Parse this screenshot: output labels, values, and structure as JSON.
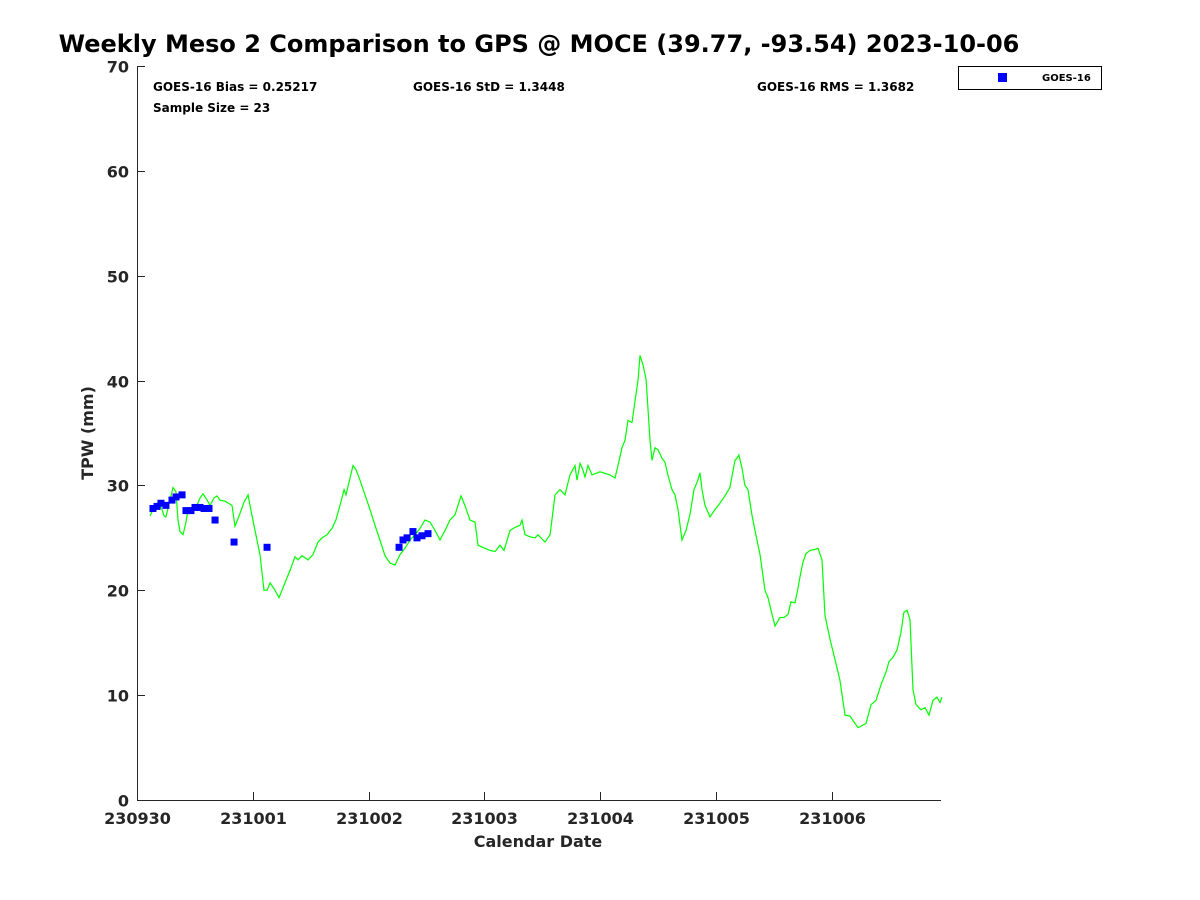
{
  "chart_data": {
    "type": "line",
    "title": "Weekly Meso 2 Comparison to GPS @ MOCE (39.77, -93.54) 2023-10-06",
    "xlabel": "Calendar Date",
    "ylabel": "TPW (mm)",
    "xlim": [
      0,
      6.95
    ],
    "ylim": [
      0,
      70
    ],
    "x_unit": "days since 230930",
    "xticks": [
      0,
      1,
      2,
      3,
      4,
      5,
      6
    ],
    "xtick_labels": [
      "230930",
      "231001",
      "231002",
      "231003",
      "231004",
      "231005",
      "231006"
    ],
    "yticks": [
      0,
      10,
      20,
      30,
      40,
      50,
      60,
      70
    ],
    "ytick_labels": [
      "0",
      "10",
      "20",
      "30",
      "40",
      "50",
      "60",
      "70"
    ],
    "grid": false,
    "legend_position": "outside top-right",
    "annotations": {
      "bias": "GOES-16 Bias = 0.25217",
      "std": "GOES-16 StD = 1.3448",
      "rms": "GOES-16 RMS = 1.3682",
      "sample": "Sample Size = 23"
    },
    "series": [
      {
        "name": "GPS",
        "color": "#00ff00",
        "style": "line",
        "in_legend": false,
        "points": [
          [
            0.112,
            27.1
          ],
          [
            0.13,
            27.5
          ],
          [
            0.155,
            28.0
          ],
          [
            0.181,
            28.4
          ],
          [
            0.216,
            27.7
          ],
          [
            0.233,
            27.1
          ],
          [
            0.25,
            27.0
          ],
          [
            0.285,
            28.6
          ],
          [
            0.311,
            29.8
          ],
          [
            0.337,
            29.4
          ],
          [
            0.354,
            26.7
          ],
          [
            0.371,
            25.6
          ],
          [
            0.397,
            25.3
          ],
          [
            0.423,
            26.5
          ],
          [
            0.44,
            27.7
          ],
          [
            0.475,
            27.8
          ],
          [
            0.51,
            27.9
          ],
          [
            0.544,
            28.8
          ],
          [
            0.57,
            29.2
          ],
          [
            0.605,
            28.6
          ],
          [
            0.63,
            28.1
          ],
          [
            0.665,
            28.8
          ],
          [
            0.691,
            29.0
          ],
          [
            0.717,
            28.6
          ],
          [
            0.76,
            28.5
          ],
          [
            0.82,
            28.1
          ],
          [
            0.846,
            26.1
          ],
          [
            0.889,
            27.3
          ],
          [
            0.924,
            28.4
          ],
          [
            0.959,
            29.1
          ],
          [
            0.976,
            28.1
          ],
          [
            1.019,
            25.7
          ],
          [
            1.062,
            23.4
          ],
          [
            1.097,
            20.0
          ],
          [
            1.123,
            20.0
          ],
          [
            1.149,
            20.7
          ],
          [
            1.192,
            20.0
          ],
          [
            1.226,
            19.3
          ],
          [
            1.278,
            20.7
          ],
          [
            1.321,
            21.9
          ],
          [
            1.364,
            23.2
          ],
          [
            1.39,
            22.9
          ],
          [
            1.425,
            23.3
          ],
          [
            1.477,
            22.9
          ],
          [
            1.52,
            23.4
          ],
          [
            1.563,
            24.6
          ],
          [
            1.598,
            25.0
          ],
          [
            1.641,
            25.3
          ],
          [
            1.684,
            25.9
          ],
          [
            1.718,
            26.7
          ],
          [
            1.753,
            28.1
          ],
          [
            1.788,
            29.6
          ],
          [
            1.805,
            29.1
          ],
          [
            1.839,
            30.7
          ],
          [
            1.865,
            31.9
          ],
          [
            1.891,
            31.5
          ],
          [
            1.926,
            30.5
          ],
          [
            1.969,
            29.1
          ],
          [
            2.012,
            27.7
          ],
          [
            2.055,
            26.2
          ],
          [
            2.098,
            24.8
          ],
          [
            2.142,
            23.3
          ],
          [
            2.185,
            22.6
          ],
          [
            2.228,
            22.4
          ],
          [
            2.271,
            23.4
          ],
          [
            2.314,
            24.0
          ],
          [
            2.358,
            24.8
          ],
          [
            2.401,
            25.3
          ],
          [
            2.444,
            25.9
          ],
          [
            2.487,
            26.7
          ],
          [
            2.53,
            26.5
          ],
          [
            2.573,
            25.7
          ],
          [
            2.617,
            24.8
          ],
          [
            2.66,
            25.7
          ],
          [
            2.703,
            26.7
          ],
          [
            2.746,
            27.2
          ],
          [
            2.772,
            28.1
          ],
          [
            2.798,
            29.0
          ],
          [
            2.832,
            28.1
          ],
          [
            2.876,
            26.7
          ],
          [
            2.919,
            26.5
          ],
          [
            2.945,
            24.3
          ],
          [
            3.005,
            24.0
          ],
          [
            3.048,
            23.8
          ],
          [
            3.092,
            23.7
          ],
          [
            3.135,
            24.3
          ],
          [
            3.169,
            23.8
          ],
          [
            3.221,
            25.7
          ],
          [
            3.264,
            26.0
          ],
          [
            3.307,
            26.2
          ],
          [
            3.325,
            26.7
          ],
          [
            3.351,
            25.3
          ],
          [
            3.394,
            25.1
          ],
          [
            3.437,
            25.0
          ],
          [
            3.463,
            25.3
          ],
          [
            3.523,
            24.6
          ],
          [
            3.567,
            25.3
          ],
          [
            3.61,
            29.1
          ],
          [
            3.653,
            29.6
          ],
          [
            3.696,
            29.1
          ],
          [
            3.739,
            31.0
          ],
          [
            3.782,
            31.9
          ],
          [
            3.8,
            30.5
          ],
          [
            3.826,
            32.1
          ],
          [
            3.851,
            31.5
          ],
          [
            3.869,
            30.8
          ],
          [
            3.895,
            31.9
          ],
          [
            3.929,
            31.0
          ],
          [
            3.998,
            31.3
          ],
          [
            4.085,
            31.0
          ],
          [
            4.128,
            30.7
          ],
          [
            4.154,
            31.9
          ],
          [
            4.188,
            33.6
          ],
          [
            4.214,
            34.3
          ],
          [
            4.24,
            36.2
          ],
          [
            4.275,
            36.0
          ],
          [
            4.301,
            38.1
          ],
          [
            4.327,
            40.1
          ],
          [
            4.344,
            42.4
          ],
          [
            4.37,
            41.5
          ],
          [
            4.396,
            40.1
          ],
          [
            4.43,
            34.3
          ],
          [
            4.447,
            32.4
          ],
          [
            4.473,
            33.6
          ],
          [
            4.499,
            33.4
          ],
          [
            4.534,
            32.6
          ],
          [
            4.56,
            32.2
          ],
          [
            4.585,
            31.0
          ],
          [
            4.62,
            29.6
          ],
          [
            4.646,
            29.1
          ],
          [
            4.672,
            27.7
          ],
          [
            4.706,
            24.8
          ],
          [
            4.741,
            25.7
          ],
          [
            4.775,
            27.2
          ],
          [
            4.81,
            29.6
          ],
          [
            4.844,
            30.5
          ],
          [
            4.862,
            31.2
          ],
          [
            4.879,
            29.6
          ],
          [
            4.905,
            28.1
          ],
          [
            4.948,
            27.0
          ],
          [
            4.991,
            27.7
          ],
          [
            5.034,
            28.3
          ],
          [
            5.077,
            29.0
          ],
          [
            5.12,
            29.8
          ],
          [
            5.164,
            32.4
          ],
          [
            5.181,
            32.6
          ],
          [
            5.198,
            32.9
          ],
          [
            5.224,
            31.7
          ],
          [
            5.25,
            30.0
          ],
          [
            5.276,
            29.6
          ],
          [
            5.31,
            27.2
          ],
          [
            5.337,
            25.7
          ],
          [
            5.38,
            23.4
          ],
          [
            5.423,
            20.0
          ],
          [
            5.449,
            19.3
          ],
          [
            5.484,
            17.7
          ],
          [
            5.51,
            16.6
          ],
          [
            5.553,
            17.4
          ],
          [
            5.587,
            17.4
          ],
          [
            5.622,
            17.7
          ],
          [
            5.648,
            18.9
          ],
          [
            5.682,
            18.8
          ],
          [
            5.708,
            20.2
          ],
          [
            5.725,
            21.3
          ],
          [
            5.751,
            22.7
          ],
          [
            5.777,
            23.5
          ],
          [
            5.812,
            23.8
          ],
          [
            5.855,
            23.9
          ],
          [
            5.881,
            24.0
          ],
          [
            5.915,
            22.9
          ],
          [
            5.941,
            17.6
          ],
          [
            5.985,
            15.3
          ],
          [
            6.028,
            13.4
          ],
          [
            6.071,
            11.4
          ],
          [
            6.114,
            8.1
          ],
          [
            6.157,
            8.0
          ],
          [
            6.2,
            7.3
          ],
          [
            6.226,
            6.9
          ],
          [
            6.261,
            7.1
          ],
          [
            6.295,
            7.3
          ],
          [
            6.339,
            9.1
          ],
          [
            6.382,
            9.5
          ],
          [
            6.425,
            11.0
          ],
          [
            6.468,
            12.2
          ],
          [
            6.494,
            13.2
          ],
          [
            6.528,
            13.6
          ],
          [
            6.563,
            14.3
          ],
          [
            6.598,
            16.0
          ],
          [
            6.623,
            17.9
          ],
          [
            6.649,
            18.1
          ],
          [
            6.675,
            17.2
          ],
          [
            6.701,
            10.5
          ],
          [
            6.727,
            9.1
          ],
          [
            6.77,
            8.6
          ],
          [
            6.805,
            8.8
          ],
          [
            6.839,
            8.1
          ],
          [
            6.874,
            9.5
          ],
          [
            6.908,
            9.8
          ],
          [
            6.934,
            9.3
          ],
          [
            6.952,
            9.8
          ]
        ]
      },
      {
        "name": "GOES-16",
        "color": "#0000ff",
        "style": "square-marker",
        "in_legend": true,
        "points": [
          [
            0.138,
            27.8
          ],
          [
            0.173,
            28.0
          ],
          [
            0.207,
            28.3
          ],
          [
            0.25,
            28.1
          ],
          [
            0.302,
            28.6
          ],
          [
            0.337,
            28.9
          ],
          [
            0.389,
            29.1
          ],
          [
            0.423,
            27.6
          ],
          [
            0.466,
            27.6
          ],
          [
            0.501,
            27.9
          ],
          [
            0.544,
            27.9
          ],
          [
            0.579,
            27.8
          ],
          [
            0.622,
            27.8
          ],
          [
            0.674,
            26.7
          ],
          [
            0.838,
            24.6
          ],
          [
            1.123,
            24.1
          ],
          [
            2.263,
            24.1
          ],
          [
            2.297,
            24.8
          ],
          [
            2.332,
            25.0
          ],
          [
            2.383,
            25.6
          ],
          [
            2.418,
            25.0
          ],
          [
            2.461,
            25.2
          ],
          [
            2.513,
            25.4
          ]
        ]
      }
    ]
  }
}
